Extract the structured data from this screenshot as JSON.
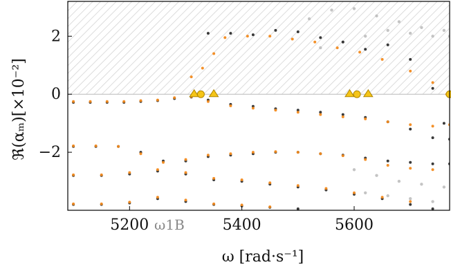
{
  "chart_data": {
    "type": "scatter",
    "title": "",
    "xlabel": "ω [rad·s⁻¹]",
    "ylabel": "ℜ(αₘ)[×10⁻²]",
    "xlim": [
      5090,
      5770
    ],
    "ylim": [
      -4.0,
      3.2
    ],
    "xticks": [
      {
        "value": 5200,
        "label": "5200"
      },
      {
        "value": 5400,
        "label": "5400"
      },
      {
        "value": 5600,
        "label": "5600"
      }
    ],
    "yticks": [
      {
        "value": 2,
        "label": "2"
      },
      {
        "value": 0,
        "label": "0"
      },
      {
        "value": -2,
        "label": "−2"
      }
    ],
    "annotations": [
      {
        "x": 5281,
        "label": "ω1B"
      }
    ],
    "unstable_region": {
      "y_min": 0,
      "hatch": true
    },
    "grid": false,
    "colors": {
      "black": "#2e2e2e",
      "orange": "#f28a1e",
      "marker_fill": "#f5c518",
      "marker_stroke": "#b08600",
      "grey": "#b5b5b5"
    },
    "series": [
      {
        "color": "black",
        "points": [
          [
            5100,
            -0.28
          ],
          [
            5130,
            -0.28
          ],
          [
            5160,
            -0.28
          ],
          [
            5190,
            -0.28
          ],
          [
            5220,
            -0.25
          ],
          [
            5250,
            -0.22
          ],
          [
            5280,
            -0.15
          ],
          [
            5310,
            -0.1
          ],
          [
            5340,
            -0.2
          ],
          [
            5380,
            -0.35
          ],
          [
            5420,
            -0.42
          ],
          [
            5460,
            -0.5
          ],
          [
            5500,
            -0.55
          ],
          [
            5540,
            -0.62
          ],
          [
            5580,
            -0.7
          ],
          [
            5620,
            -0.8
          ],
          [
            5660,
            -0.95
          ],
          [
            5700,
            -1.2
          ],
          [
            5740,
            -1.5
          ],
          [
            5770,
            -1.55
          ],
          [
            5100,
            -1.8
          ],
          [
            5140,
            -1.8
          ],
          [
            5180,
            -1.8
          ],
          [
            5220,
            -2.0
          ],
          [
            5260,
            -2.3
          ],
          [
            5300,
            -2.3
          ],
          [
            5340,
            -2.15
          ],
          [
            5380,
            -2.1
          ],
          [
            5420,
            -2.05
          ],
          [
            5460,
            -2.0
          ],
          [
            5500,
            -2.0
          ],
          [
            5540,
            -2.05
          ],
          [
            5580,
            -2.1
          ],
          [
            5620,
            -2.2
          ],
          [
            5660,
            -2.3
          ],
          [
            5700,
            -2.35
          ],
          [
            5740,
            -2.4
          ],
          [
            5770,
            -2.4
          ],
          [
            5100,
            -2.8
          ],
          [
            5150,
            -2.8
          ],
          [
            5200,
            -2.75
          ],
          [
            5250,
            -2.65
          ],
          [
            5300,
            -2.75
          ],
          [
            5350,
            -2.95
          ],
          [
            5400,
            -3.0
          ],
          [
            5450,
            -3.1
          ],
          [
            5500,
            -3.2
          ],
          [
            5550,
            -3.3
          ],
          [
            5600,
            -3.45
          ],
          [
            5650,
            -3.6
          ],
          [
            5700,
            -3.8
          ],
          [
            5740,
            -3.95
          ],
          [
            5100,
            -3.8
          ],
          [
            5150,
            -3.8
          ],
          [
            5200,
            -3.75
          ],
          [
            5250,
            -3.6
          ],
          [
            5300,
            -3.7
          ],
          [
            5350,
            -3.8
          ],
          [
            5400,
            -3.85
          ],
          [
            5450,
            -3.9
          ],
          [
            5500,
            -3.95
          ],
          [
            5340,
            2.1
          ],
          [
            5380,
            2.1
          ],
          [
            5420,
            2.05
          ],
          [
            5460,
            2.2
          ],
          [
            5500,
            2.15
          ],
          [
            5540,
            1.95
          ],
          [
            5580,
            1.8
          ],
          [
            5620,
            1.55
          ],
          [
            5660,
            1.7
          ],
          [
            5700,
            1.2
          ],
          [
            5740,
            0.2
          ],
          [
            5760,
            -1.0
          ]
        ]
      },
      {
        "color": "orange",
        "points": [
          [
            5100,
            -0.25
          ],
          [
            5130,
            -0.25
          ],
          [
            5160,
            -0.25
          ],
          [
            5190,
            -0.25
          ],
          [
            5220,
            -0.22
          ],
          [
            5250,
            -0.2
          ],
          [
            5280,
            -0.12
          ],
          [
            5310,
            -0.08
          ],
          [
            5340,
            -0.25
          ],
          [
            5380,
            -0.4
          ],
          [
            5420,
            -0.48
          ],
          [
            5460,
            -0.55
          ],
          [
            5500,
            -0.62
          ],
          [
            5540,
            -0.7
          ],
          [
            5580,
            -0.78
          ],
          [
            5620,
            -0.85
          ],
          [
            5660,
            -0.95
          ],
          [
            5700,
            -1.05
          ],
          [
            5740,
            -1.1
          ],
          [
            5770,
            -1.05
          ],
          [
            5100,
            -1.78
          ],
          [
            5140,
            -1.78
          ],
          [
            5180,
            -1.8
          ],
          [
            5220,
            -2.05
          ],
          [
            5260,
            -2.35
          ],
          [
            5300,
            -2.25
          ],
          [
            5340,
            -2.1
          ],
          [
            5380,
            -2.05
          ],
          [
            5420,
            -2.0
          ],
          [
            5460,
            -1.98
          ],
          [
            5500,
            -2.0
          ],
          [
            5540,
            -2.05
          ],
          [
            5580,
            -2.12
          ],
          [
            5620,
            -2.25
          ],
          [
            5660,
            -2.45
          ],
          [
            5700,
            -2.55
          ],
          [
            5740,
            -2.6
          ],
          [
            5100,
            -2.78
          ],
          [
            5150,
            -2.78
          ],
          [
            5200,
            -2.7
          ],
          [
            5250,
            -2.6
          ],
          [
            5300,
            -2.7
          ],
          [
            5350,
            -2.9
          ],
          [
            5400,
            -2.95
          ],
          [
            5450,
            -3.05
          ],
          [
            5500,
            -3.15
          ],
          [
            5550,
            -3.25
          ],
          [
            5600,
            -3.4
          ],
          [
            5650,
            -3.55
          ],
          [
            5700,
            -3.7
          ],
          [
            5100,
            -3.78
          ],
          [
            5150,
            -3.78
          ],
          [
            5200,
            -3.72
          ],
          [
            5250,
            -3.55
          ],
          [
            5300,
            -3.65
          ],
          [
            5350,
            -3.78
          ],
          [
            5400,
            -3.82
          ],
          [
            5450,
            -3.88
          ],
          [
            5310,
            0.6
          ],
          [
            5330,
            0.9
          ],
          [
            5350,
            1.4
          ],
          [
            5370,
            1.95
          ],
          [
            5410,
            2.0
          ],
          [
            5450,
            2.0
          ],
          [
            5490,
            1.9
          ],
          [
            5530,
            1.8
          ],
          [
            5570,
            1.6
          ],
          [
            5610,
            1.45
          ],
          [
            5650,
            1.2
          ],
          [
            5700,
            0.8
          ],
          [
            5740,
            0.4
          ],
          [
            5765,
            0.0
          ]
        ]
      },
      {
        "color": "grey",
        "points": [
          [
            5520,
            2.6
          ],
          [
            5560,
            2.9
          ],
          [
            5600,
            2.95
          ],
          [
            5640,
            2.7
          ],
          [
            5680,
            2.5
          ],
          [
            5720,
            2.3
          ],
          [
            5760,
            2.2
          ],
          [
            5540,
            1.6
          ],
          [
            5580,
            1.8
          ],
          [
            5620,
            2.0
          ],
          [
            5660,
            2.2
          ],
          [
            5700,
            2.1
          ],
          [
            5740,
            2.0
          ],
          [
            5770,
            2.0
          ],
          [
            5600,
            -2.6
          ],
          [
            5640,
            -2.8
          ],
          [
            5680,
            -3.0
          ],
          [
            5720,
            -3.1
          ],
          [
            5760,
            -3.2
          ],
          [
            5620,
            -3.4
          ],
          [
            5660,
            -3.5
          ],
          [
            5700,
            -3.6
          ],
          [
            5740,
            -3.7
          ]
        ]
      }
    ],
    "markers": [
      {
        "shape": "triangle",
        "x": 5315,
        "y": 0.0
      },
      {
        "shape": "circle",
        "x": 5327,
        "y": 0.0
      },
      {
        "shape": "triangle",
        "x": 5350,
        "y": 0.0
      },
      {
        "shape": "triangle",
        "x": 5592,
        "y": 0.0
      },
      {
        "shape": "circle",
        "x": 5605,
        "y": 0.0
      },
      {
        "shape": "triangle",
        "x": 5625,
        "y": 0.0
      },
      {
        "shape": "circle",
        "x": 5770,
        "y": 0.0
      }
    ]
  }
}
